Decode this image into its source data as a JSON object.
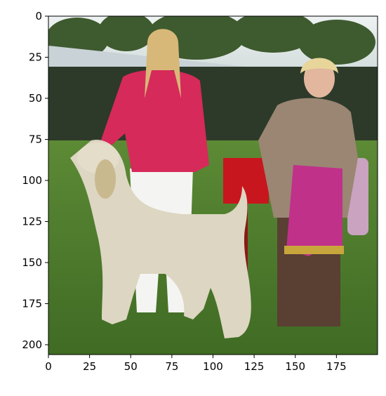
{
  "figure": {
    "x_ticks": [
      "0",
      "25",
      "50",
      "75",
      "100",
      "125",
      "150",
      "175"
    ],
    "y_ticks": [
      "0",
      "25",
      "50",
      "75",
      "100",
      "125",
      "150",
      "175",
      "200"
    ],
    "image_extent": {
      "x": [
        0,
        200
      ],
      "y": [
        206,
        0
      ]
    }
  },
  "colors": {
    "grass": "#4f7a2e",
    "sky": "#dfe7e8",
    "trees": "#3e5a2f",
    "awning": "#c9d2d6",
    "jacket": "#d62a5a",
    "dog_coat": "#ddd6c2",
    "rosette": "#c0318a",
    "red_sign": "#c8161f"
  }
}
